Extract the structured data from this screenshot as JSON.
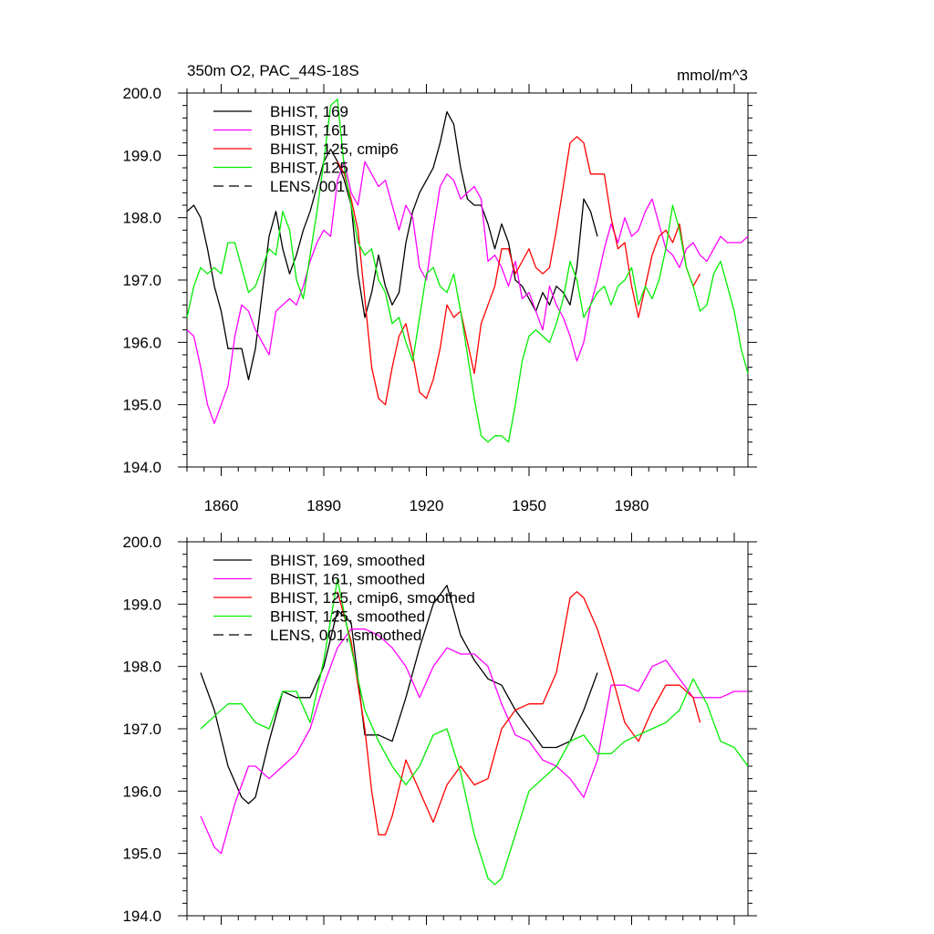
{
  "chart_data": [
    {
      "type": "line",
      "title_left": "350m O2, PAC_44S-18S",
      "title_right": "mmol/m^3",
      "ylim": [
        194.0,
        200.0
      ],
      "xlim": [
        1850,
        2014
      ],
      "y_ticks": [
        "194.0",
        "195.0",
        "196.0",
        "197.0",
        "198.0",
        "199.0",
        "200.0"
      ],
      "y_tick_values": [
        194,
        195,
        196,
        197,
        198,
        199,
        200
      ],
      "x_ticks": [
        "1860",
        "1890",
        "1920",
        "1950",
        "1980"
      ],
      "x_tick_values": [
        1860,
        1890,
        1920,
        1950,
        1980
      ],
      "legend": [
        {
          "label": "BHIST, 169",
          "color": "#000000",
          "dash": false
        },
        {
          "label": "BHIST, 161",
          "color": "#ff00ff",
          "dash": false
        },
        {
          "label": "BHIST, 125, cmip6",
          "color": "#ff0000",
          "dash": false
        },
        {
          "label": "BHIST, 125",
          "color": "#00ee00",
          "dash": false
        },
        {
          "label": "LENS, 001",
          "color": "#000000",
          "dash": true
        }
      ],
      "series": [
        {
          "name": "BHIST, 169",
          "color": "#000000",
          "x": [
            1850,
            1852,
            1854,
            1856,
            1858,
            1860,
            1862,
            1864,
            1866,
            1868,
            1870,
            1872,
            1874,
            1876,
            1878,
            1880,
            1882,
            1884,
            1886,
            1888,
            1890,
            1892,
            1894,
            1896,
            1898,
            1900,
            1902,
            1904,
            1906,
            1908,
            1910,
            1912,
            1914,
            1916,
            1918,
            1920,
            1922,
            1924,
            1926,
            1928,
            1930,
            1932,
            1934,
            1936,
            1938,
            1940,
            1942,
            1944,
            1946,
            1948,
            1950,
            1952,
            1954,
            1956,
            1958,
            1960,
            1962,
            1964,
            1966,
            1968,
            1970
          ],
          "values": [
            198.1,
            198.2,
            198.0,
            197.5,
            196.9,
            196.5,
            195.9,
            195.9,
            195.9,
            195.4,
            195.9,
            196.8,
            197.7,
            198.1,
            197.5,
            197.1,
            197.4,
            197.8,
            198.1,
            198.5,
            198.9,
            199.1,
            198.9,
            198.6,
            198.2,
            197.1,
            196.4,
            196.8,
            197.4,
            196.9,
            196.6,
            196.8,
            197.6,
            198.1,
            198.4,
            198.6,
            198.8,
            199.2,
            199.7,
            199.5,
            198.8,
            198.3,
            198.2,
            198.2,
            197.9,
            197.5,
            197.9,
            197.6,
            197.0,
            196.9,
            196.7,
            196.5,
            196.8,
            196.6,
            196.9,
            196.8,
            196.6,
            197.2,
            198.3,
            198.1,
            197.7
          ]
        },
        {
          "name": "BHIST, 161",
          "color": "#ff00ff",
          "x": [
            1850,
            1852,
            1854,
            1856,
            1858,
            1860,
            1862,
            1864,
            1866,
            1868,
            1870,
            1872,
            1874,
            1876,
            1878,
            1880,
            1882,
            1884,
            1886,
            1888,
            1890,
            1892,
            1894,
            1896,
            1898,
            1900,
            1902,
            1904,
            1906,
            1908,
            1910,
            1912,
            1914,
            1916,
            1918,
            1920,
            1922,
            1924,
            1926,
            1928,
            1930,
            1932,
            1934,
            1936,
            1938,
            1940,
            1942,
            1944,
            1946,
            1948,
            1950,
            1952,
            1954,
            1956,
            1958,
            1960,
            1962,
            1964,
            1966,
            1968,
            1970,
            1972,
            1974,
            1976,
            1978,
            1980,
            1982,
            1984,
            1986,
            1988,
            1990,
            1992,
            1994,
            1996,
            1998,
            2000,
            2002,
            2004,
            2006,
            2008,
            2010,
            2012,
            2014
          ],
          "values": [
            196.2,
            196.1,
            195.6,
            195.0,
            194.7,
            195.0,
            195.3,
            196.1,
            196.6,
            196.5,
            196.2,
            196.0,
            195.8,
            196.5,
            196.6,
            196.7,
            196.6,
            196.9,
            197.3,
            197.6,
            197.8,
            197.7,
            198.6,
            198.9,
            198.4,
            198.2,
            198.9,
            198.7,
            198.5,
            198.6,
            198.2,
            197.8,
            198.2,
            198.0,
            197.2,
            197.0,
            197.8,
            198.5,
            198.7,
            198.6,
            198.3,
            198.4,
            198.5,
            198.3,
            197.3,
            197.4,
            197.2,
            196.9,
            197.3,
            196.7,
            196.8,
            196.5,
            196.2,
            196.9,
            196.6,
            196.4,
            196.1,
            195.7,
            196.0,
            196.6,
            197.0,
            197.5,
            197.9,
            197.6,
            198.0,
            197.7,
            197.8,
            198.1,
            198.3,
            197.9,
            197.5,
            197.4,
            197.2,
            197.5,
            197.6,
            197.4,
            197.3,
            197.5,
            197.7,
            197.6,
            197.6,
            197.6,
            197.7
          ]
        },
        {
          "name": "BHIST, 125, cmip6",
          "color": "#ff0000",
          "x": [
            1894,
            1896,
            1898,
            1900,
            1902,
            1904,
            1906,
            1908,
            1910,
            1912,
            1914,
            1916,
            1918,
            1920,
            1922,
            1924,
            1926,
            1928,
            1930,
            1932,
            1934,
            1936,
            1938,
            1940,
            1942,
            1944,
            1946,
            1948,
            1950,
            1952,
            1954,
            1956,
            1958,
            1960,
            1962,
            1964,
            1966,
            1968,
            1970,
            1972,
            1974,
            1976,
            1978,
            1980,
            1982,
            1984,
            1986,
            1988,
            1990,
            1992,
            1994,
            1996,
            1998,
            2000
          ],
          "values": [
            198.9,
            198.7,
            198.3,
            197.8,
            196.7,
            195.6,
            195.1,
            195.0,
            195.6,
            196.1,
            196.3,
            195.8,
            195.2,
            195.1,
            195.4,
            195.9,
            196.6,
            196.4,
            196.5,
            196.0,
            195.5,
            196.3,
            196.6,
            196.9,
            197.5,
            197.5,
            197.1,
            197.3,
            197.5,
            197.2,
            197.1,
            197.2,
            197.8,
            198.5,
            199.2,
            199.3,
            199.2,
            198.7,
            198.7,
            198.7,
            198.0,
            197.5,
            197.6,
            196.9,
            196.4,
            196.9,
            197.4,
            197.7,
            197.8,
            197.6,
            197.9,
            197.2,
            196.9,
            197.1
          ]
        },
        {
          "name": "BHIST, 125",
          "color": "#00ee00",
          "x": [
            1850,
            1852,
            1854,
            1856,
            1858,
            1860,
            1862,
            1864,
            1866,
            1868,
            1870,
            1872,
            1874,
            1876,
            1878,
            1880,
            1882,
            1884,
            1886,
            1888,
            1890,
            1892,
            1894,
            1896,
            1898,
            1900,
            1902,
            1904,
            1906,
            1908,
            1910,
            1912,
            1914,
            1916,
            1918,
            1920,
            1922,
            1924,
            1926,
            1928,
            1930,
            1932,
            1934,
            1936,
            1938,
            1940,
            1942,
            1944,
            1946,
            1948,
            1950,
            1952,
            1954,
            1956,
            1958,
            1960,
            1962,
            1964,
            1966,
            1968,
            1970,
            1972,
            1974,
            1976,
            1978,
            1980,
            1982,
            1984,
            1986,
            1988,
            1990,
            1992,
            1994,
            1996,
            1998,
            2000,
            2002,
            2004,
            2006,
            2008,
            2010,
            2012,
            2014
          ],
          "values": [
            196.4,
            196.9,
            197.2,
            197.1,
            197.2,
            197.1,
            197.6,
            197.6,
            197.2,
            196.8,
            196.9,
            197.2,
            197.5,
            197.4,
            198.1,
            197.8,
            197.0,
            196.7,
            197.4,
            198.1,
            198.9,
            199.8,
            199.9,
            198.8,
            198.2,
            197.6,
            197.4,
            197.5,
            197.0,
            196.8,
            196.3,
            196.4,
            196.0,
            195.7,
            196.4,
            197.1,
            197.2,
            196.9,
            196.8,
            197.1,
            196.5,
            195.8,
            195.1,
            194.5,
            194.4,
            194.5,
            194.5,
            194.4,
            195.0,
            195.7,
            196.1,
            196.2,
            196.1,
            196.0,
            196.3,
            196.7,
            197.3,
            197.0,
            196.4,
            196.6,
            196.8,
            196.9,
            196.6,
            196.9,
            197.0,
            197.2,
            196.6,
            196.9,
            196.7,
            197.0,
            197.5,
            198.2,
            197.8,
            197.2,
            196.9,
            196.5,
            196.6,
            197.1,
            197.3,
            196.9,
            196.5,
            195.9,
            195.5
          ]
        }
      ]
    },
    {
      "type": "line",
      "ylim": [
        194.0,
        200.0
      ],
      "xlim": [
        1850,
        2014
      ],
      "y_ticks": [
        "194.0",
        "195.0",
        "196.0",
        "197.0",
        "198.0",
        "199.0",
        "200.0"
      ],
      "y_tick_values": [
        194,
        195,
        196,
        197,
        198,
        199,
        200
      ],
      "x_tick_values": [
        1860,
        1890,
        1920,
        1950,
        1980
      ],
      "legend": [
        {
          "label": "BHIST, 169, smoothed",
          "color": "#000000",
          "dash": false
        },
        {
          "label": "BHIST, 161, smoothed",
          "color": "#ff00ff",
          "dash": false
        },
        {
          "label": "BHIST, 125, cmip6, smoothed",
          "color": "#ff0000",
          "dash": false
        },
        {
          "label": "BHIST, 125, smoothed",
          "color": "#00ee00",
          "dash": false
        },
        {
          "label": "LENS, 001, smoothed",
          "color": "#000000",
          "dash": true
        }
      ],
      "series": [
        {
          "name": "BHIST, 169, smoothed",
          "color": "#000000",
          "x": [
            1854,
            1858,
            1862,
            1866,
            1868,
            1870,
            1874,
            1878,
            1882,
            1886,
            1890,
            1894,
            1898,
            1902,
            1906,
            1910,
            1914,
            1918,
            1922,
            1926,
            1930,
            1934,
            1938,
            1942,
            1946,
            1950,
            1954,
            1958,
            1962,
            1966,
            1970
          ],
          "values": [
            197.9,
            197.3,
            196.4,
            195.9,
            195.8,
            195.9,
            196.8,
            197.6,
            197.5,
            197.5,
            198.0,
            198.9,
            198.7,
            196.9,
            196.9,
            196.8,
            197.5,
            198.3,
            199.0,
            199.3,
            198.5,
            198.1,
            197.8,
            197.7,
            197.3,
            197.0,
            196.7,
            196.7,
            196.8,
            197.3,
            197.9
          ]
        },
        {
          "name": "BHIST, 161, smoothed",
          "color": "#ff00ff",
          "x": [
            1854,
            1858,
            1860,
            1864,
            1868,
            1870,
            1874,
            1878,
            1882,
            1886,
            1890,
            1894,
            1898,
            1902,
            1906,
            1910,
            1914,
            1918,
            1922,
            1926,
            1930,
            1934,
            1938,
            1942,
            1946,
            1950,
            1954,
            1958,
            1962,
            1966,
            1970,
            1974,
            1978,
            1982,
            1986,
            1990,
            1994,
            1998,
            2002,
            2006,
            2010,
            2014
          ],
          "values": [
            195.6,
            195.1,
            195.0,
            195.8,
            196.4,
            196.4,
            196.2,
            196.4,
            196.6,
            197.0,
            197.7,
            198.3,
            198.6,
            198.6,
            198.5,
            198.3,
            198.0,
            197.5,
            198.0,
            198.3,
            198.2,
            198.2,
            198.0,
            197.4,
            196.9,
            196.8,
            196.5,
            196.4,
            196.2,
            195.9,
            196.5,
            197.7,
            197.7,
            197.6,
            198.0,
            198.1,
            197.8,
            197.5,
            197.5,
            197.5,
            197.6,
            197.6
          ]
        },
        {
          "name": "BHIST, 125, cmip6, smoothed",
          "color": "#ff0000",
          "x": [
            1894,
            1898,
            1902,
            1904,
            1906,
            1908,
            1910,
            1914,
            1918,
            1922,
            1926,
            1930,
            1934,
            1938,
            1942,
            1946,
            1950,
            1954,
            1958,
            1962,
            1964,
            1966,
            1970,
            1974,
            1978,
            1982,
            1986,
            1990,
            1994,
            1998,
            2000
          ],
          "values": [
            199.2,
            198.4,
            197.0,
            196.0,
            195.3,
            195.3,
            195.6,
            196.5,
            196.0,
            195.5,
            196.1,
            196.4,
            196.1,
            196.2,
            197.0,
            197.3,
            197.4,
            197.4,
            197.9,
            199.1,
            199.2,
            199.1,
            198.6,
            197.9,
            197.1,
            196.8,
            197.3,
            197.7,
            197.7,
            197.5,
            197.1
          ]
        },
        {
          "name": "BHIST, 125, smoothed",
          "color": "#00ee00",
          "x": [
            1854,
            1858,
            1862,
            1866,
            1870,
            1874,
            1878,
            1882,
            1886,
            1890,
            1894,
            1898,
            1902,
            1906,
            1910,
            1914,
            1918,
            1922,
            1926,
            1930,
            1934,
            1938,
            1940,
            1942,
            1946,
            1950,
            1954,
            1958,
            1962,
            1966,
            1970,
            1974,
            1978,
            1982,
            1986,
            1990,
            1994,
            1998,
            2002,
            2006,
            2010,
            2014
          ],
          "values": [
            197.0,
            197.2,
            197.4,
            197.4,
            197.1,
            197.0,
            197.6,
            197.6,
            197.1,
            198.1,
            199.4,
            198.3,
            197.3,
            196.8,
            196.4,
            196.1,
            196.4,
            196.9,
            197.0,
            196.3,
            195.3,
            194.6,
            194.5,
            194.6,
            195.3,
            196.0,
            196.2,
            196.4,
            196.8,
            196.9,
            196.6,
            196.6,
            196.8,
            196.9,
            197.0,
            197.1,
            197.3,
            197.8,
            197.4,
            196.8,
            196.7,
            196.4
          ]
        }
      ]
    }
  ]
}
